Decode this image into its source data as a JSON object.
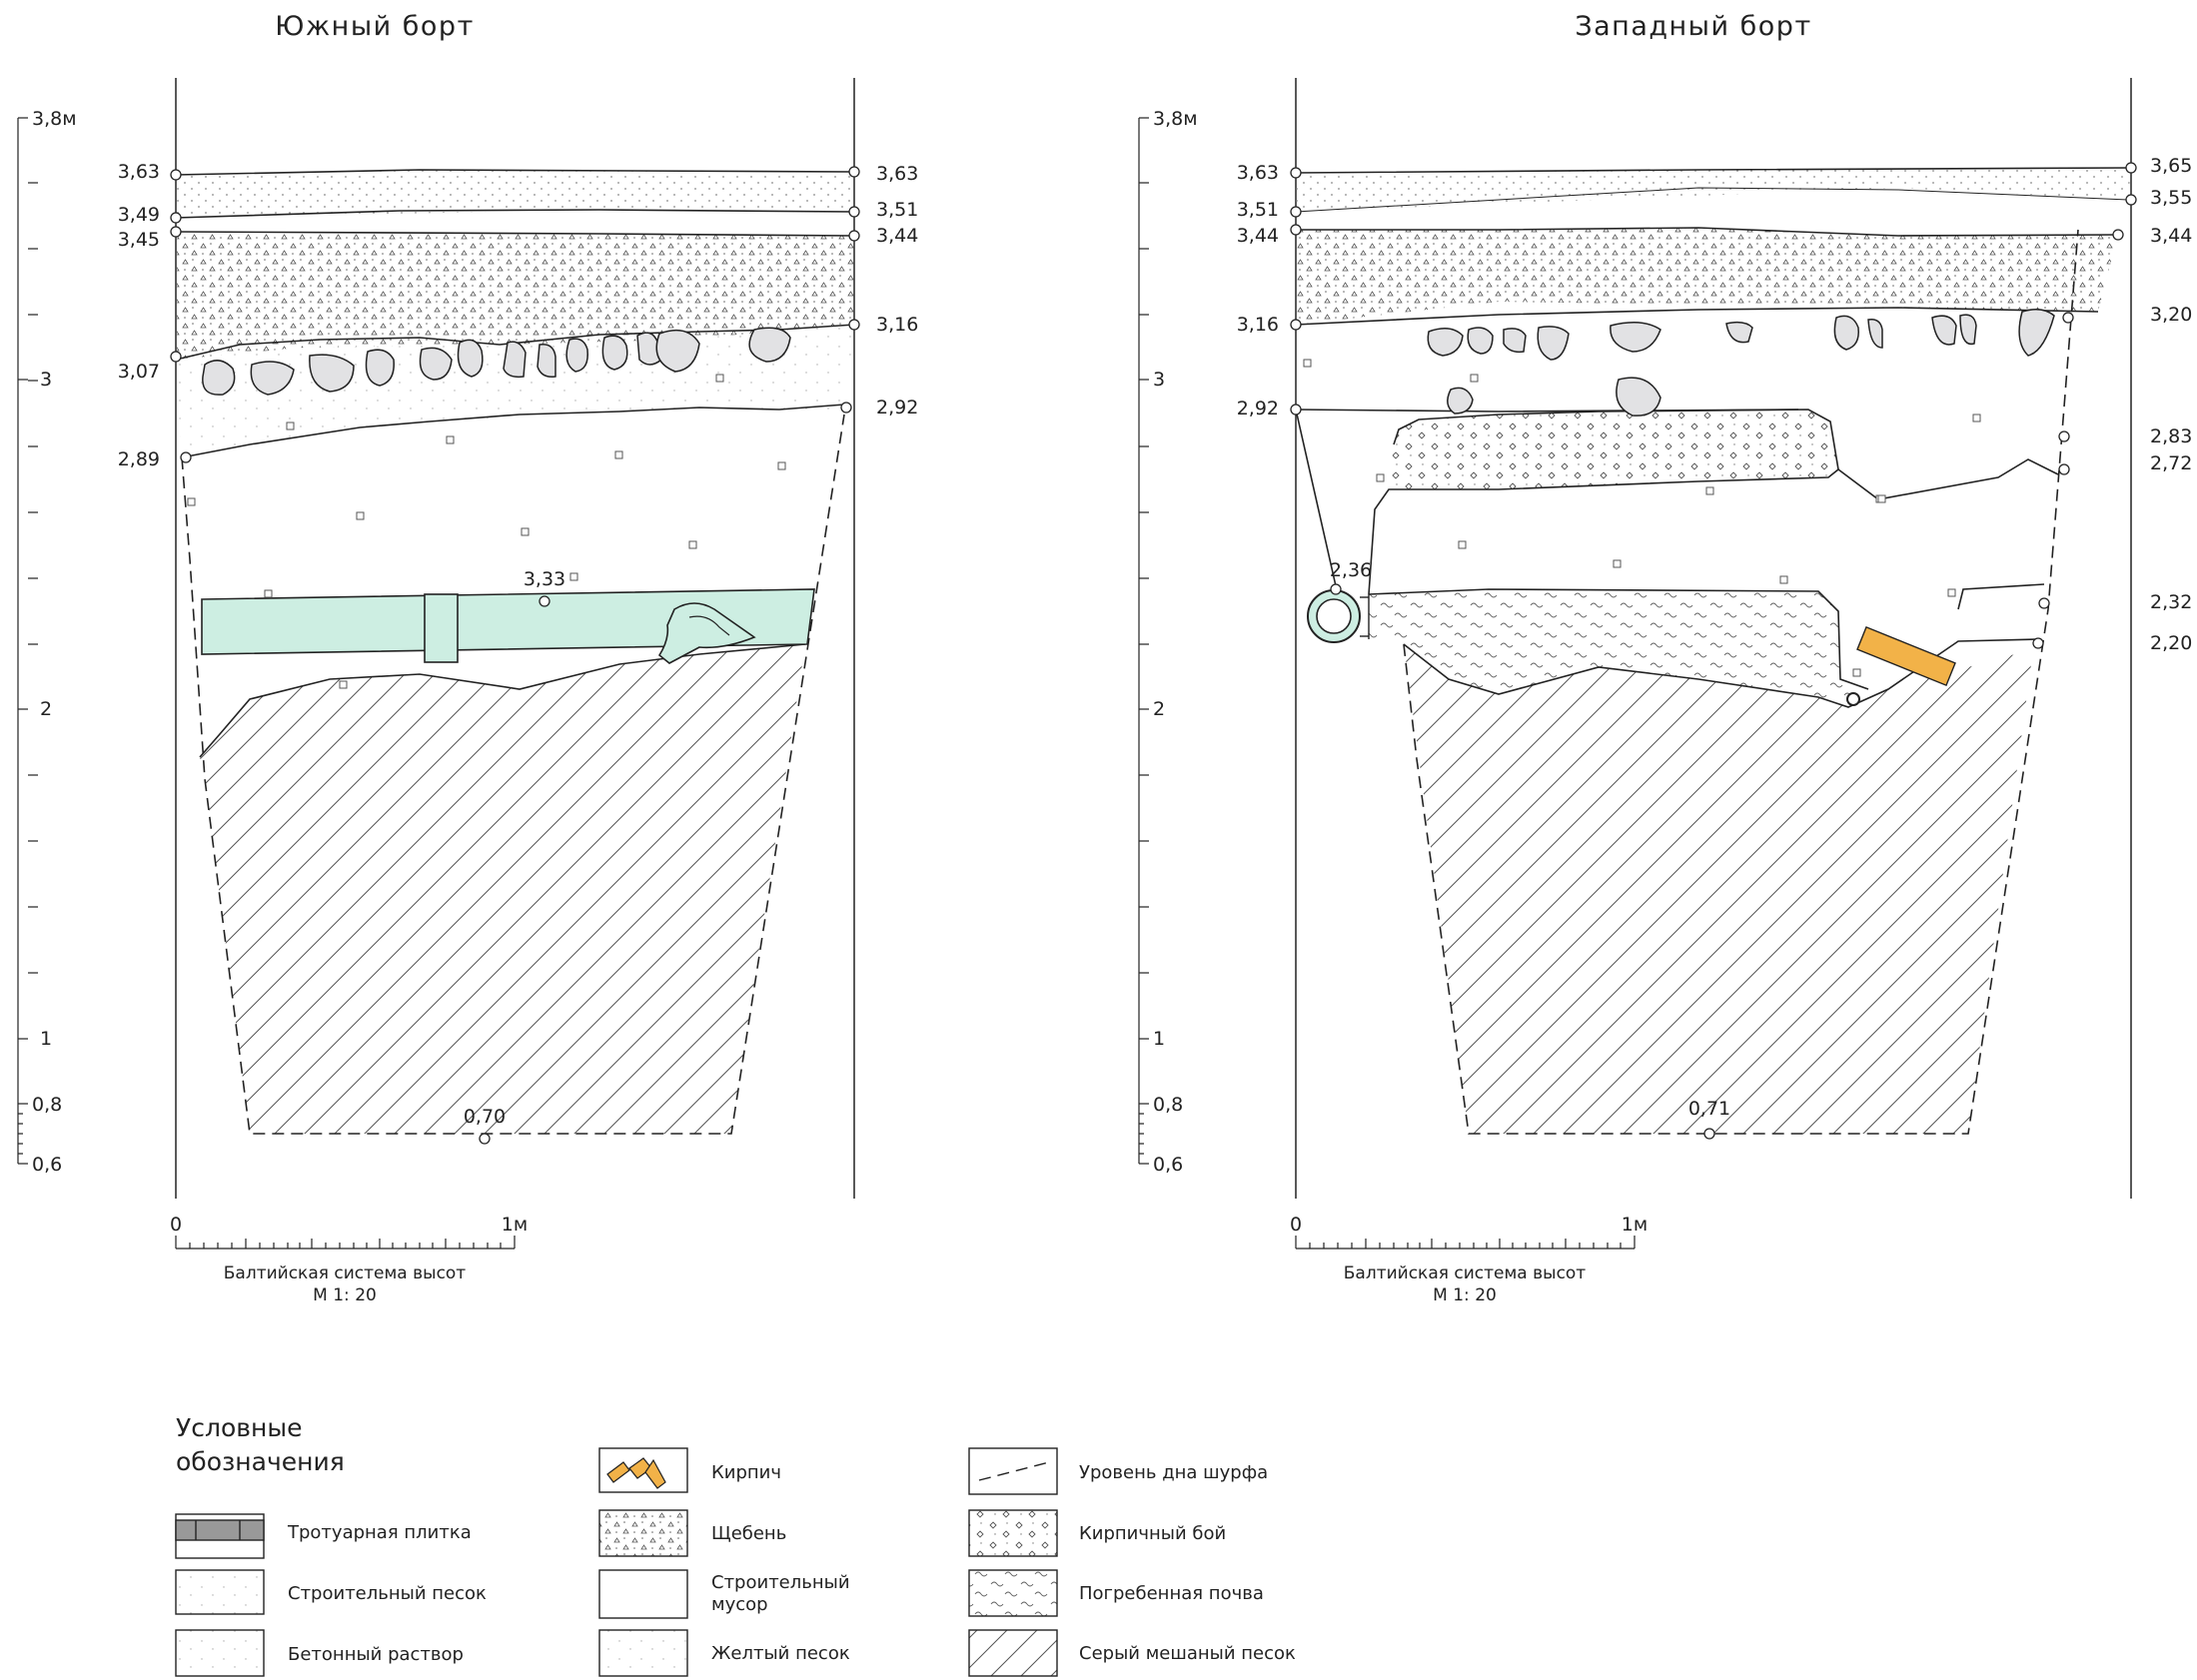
{
  "sections": [
    {
      "id": "south",
      "title": "Южный борт",
      "axis": {
        "top_label": "3,8м",
        "labels": [
          "3",
          "2",
          "1",
          "0,8",
          "0,6"
        ]
      },
      "left_marks": [
        "3,63",
        "3,49",
        "3,45",
        "3,07",
        "2,89"
      ],
      "right_marks": [
        "3,63",
        "3,51",
        "3,44",
        "3,16",
        "2,92"
      ],
      "inner_marks": [
        "3,33",
        "0,70"
      ],
      "scale": {
        "zero": "0",
        "one": "1м",
        "caption": "Балтийская система высот",
        "ratio": "М 1: 20"
      }
    },
    {
      "id": "west",
      "title": "Западный борт",
      "axis": {
        "top_label": "3,8м",
        "labels": [
          "3",
          "2",
          "1",
          "0,8",
          "0,6"
        ]
      },
      "left_marks": [
        "3,63",
        "3,51",
        "3,44",
        "3,16",
        "2,92"
      ],
      "right_marks": [
        "3,65",
        "3,55",
        "3,44",
        "3,20",
        "2,83",
        "2,72",
        "2,32",
        "2,20"
      ],
      "inner_marks": [
        "2,36",
        "0,71"
      ],
      "scale": {
        "zero": "0",
        "one": "1м",
        "caption": "Балтийская система высот",
        "ratio": "М 1: 20"
      }
    }
  ],
  "legend": {
    "title_line1": "Условные",
    "title_line2": "обозначения",
    "items": [
      {
        "key": "tile",
        "label": "Тротуарная плитка"
      },
      {
        "key": "build-sand",
        "label": "Строительный песок"
      },
      {
        "key": "concrete",
        "label": "Бетонный раствор"
      },
      {
        "key": "brick",
        "label": "Кирпич"
      },
      {
        "key": "gravel",
        "label": "Щебень"
      },
      {
        "key": "debris",
        "label": "Строительный",
        "label2": "мусор"
      },
      {
        "key": "yellow-sand",
        "label": "Желтый песок"
      },
      {
        "key": "pit-bottom",
        "label": "Уровень дна шурфа"
      },
      {
        "key": "brick-rubble",
        "label": "Кирпичный бой"
      },
      {
        "key": "buried-soil",
        "label": "Погребенная почва"
      },
      {
        "key": "grey-sand",
        "label": "Серый мешаный песок"
      }
    ]
  },
  "colors": {
    "pipe": "#cdeee2",
    "brick": "#f2b248",
    "stone": "#e2e2e4",
    "line": "#222222"
  }
}
